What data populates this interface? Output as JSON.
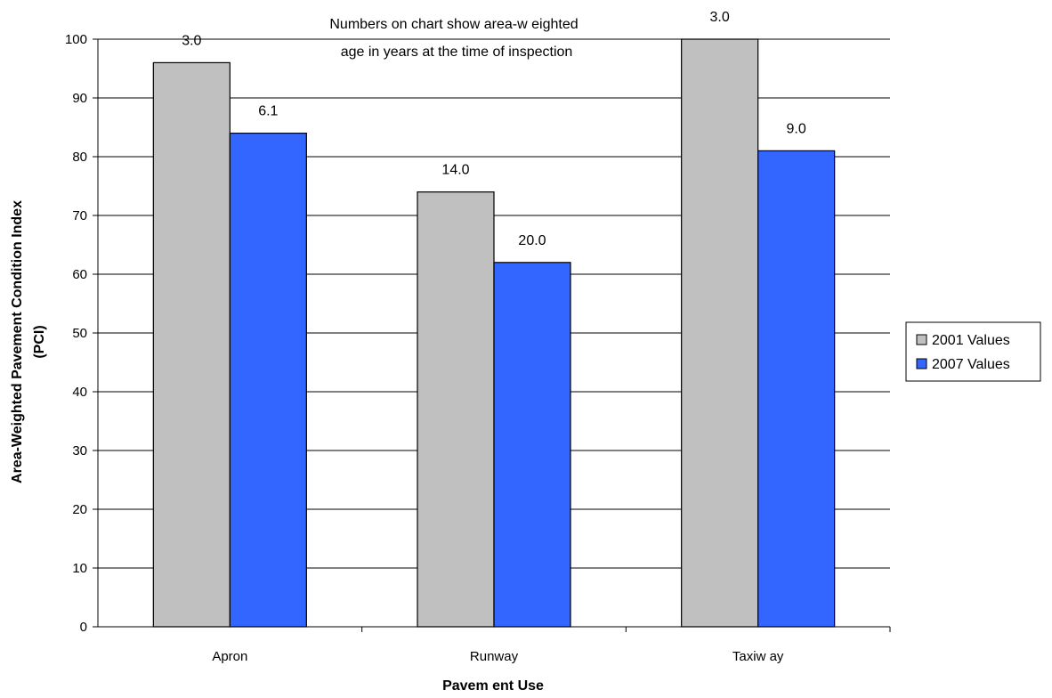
{
  "chart_data": {
    "type": "bar",
    "categories": [
      "Apron",
      "Runway",
      "Taxiw ay"
    ],
    "series": [
      {
        "name": "2001 Values",
        "color": "#C0C0C0",
        "values": [
          96,
          74,
          100
        ],
        "labels": [
          "3.0",
          "14.0",
          "3.0"
        ]
      },
      {
        "name": "2007 Values",
        "color": "#3366FF",
        "values": [
          84,
          62,
          81
        ],
        "labels": [
          "6.1",
          "20.0",
          "9.0"
        ]
      }
    ],
    "ylim": [
      0,
      100
    ],
    "yticks": [
      0,
      10,
      20,
      30,
      40,
      50,
      60,
      70,
      80,
      90,
      100
    ],
    "xlabel": "Pavem ent Use",
    "ylabel_line1": "Area-Weighted Pavement Condition Index",
    "ylabel_line2": "(PCI)",
    "annotation_line1": "Numbers on chart show  area-w eighted",
    "annotation_line2": "age in years at the time of inspection",
    "grid": true,
    "legend_position": "right"
  }
}
